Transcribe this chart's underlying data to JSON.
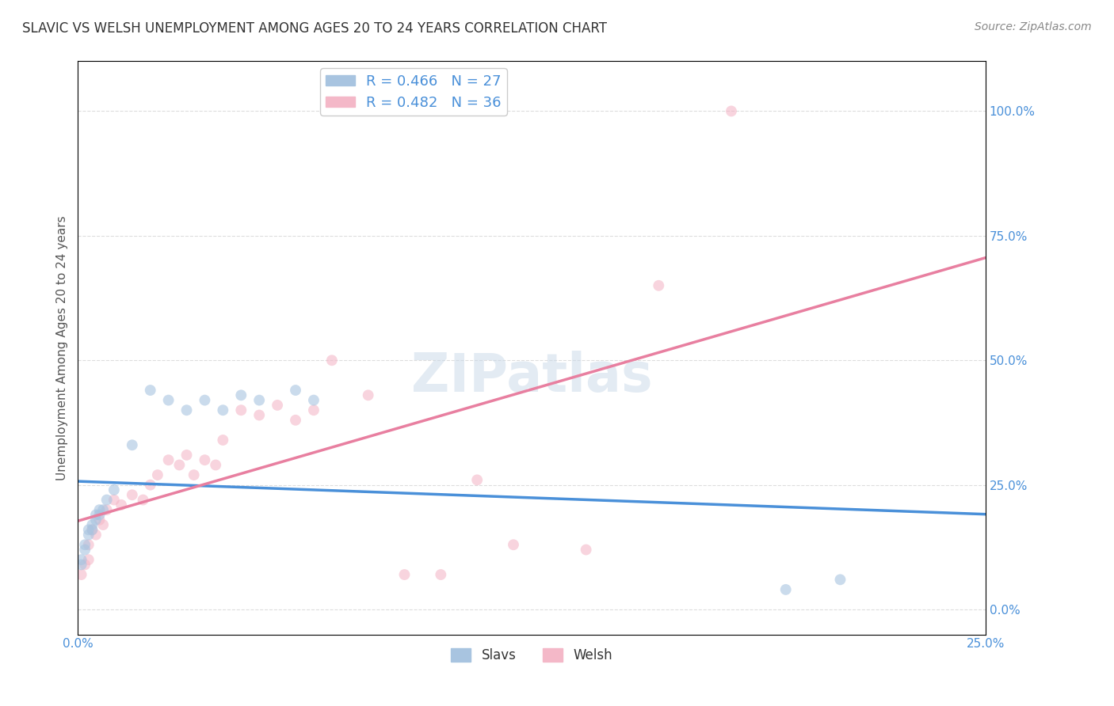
{
  "title": "SLAVIC VS WELSH UNEMPLOYMENT AMONG AGES 20 TO 24 YEARS CORRELATION CHART",
  "source": "Source: ZipAtlas.com",
  "xlabel": "",
  "ylabel": "Unemployment Among Ages 20 to 24 years",
  "xlim": [
    0.0,
    0.25
  ],
  "ylim": [
    -0.05,
    1.1
  ],
  "yticks": [
    0.0,
    0.25,
    0.5,
    0.75,
    1.0
  ],
  "ytick_labels": [
    "0.0%",
    "25.0%",
    "50.0%",
    "75.0%",
    "100.0%"
  ],
  "xticks": [
    0.0,
    0.05,
    0.1,
    0.15,
    0.2,
    0.25
  ],
  "xtick_labels": [
    "0.0%",
    "",
    "",
    "",
    "",
    "25.0%"
  ],
  "slavs_color": "#a8c4e0",
  "welsh_color": "#f4b8c8",
  "slavs_line_color": "#4a90d9",
  "welsh_line_color": "#e87fa0",
  "legend_text_color": "#4a90d9",
  "background_color": "#ffffff",
  "grid_color": "#dddddd",
  "slavs_R": 0.466,
  "slavs_N": 27,
  "welsh_R": 0.482,
  "welsh_N": 36,
  "slavs_x": [
    0.001,
    0.001,
    0.002,
    0.002,
    0.003,
    0.003,
    0.004,
    0.004,
    0.005,
    0.005,
    0.006,
    0.006,
    0.007,
    0.008,
    0.01,
    0.015,
    0.02,
    0.025,
    0.03,
    0.035,
    0.04,
    0.045,
    0.05,
    0.06,
    0.065,
    0.195,
    0.21
  ],
  "slavs_y": [
    0.1,
    0.09,
    0.13,
    0.12,
    0.16,
    0.15,
    0.17,
    0.16,
    0.19,
    0.18,
    0.2,
    0.19,
    0.2,
    0.22,
    0.24,
    0.33,
    0.44,
    0.42,
    0.4,
    0.42,
    0.4,
    0.43,
    0.42,
    0.44,
    0.42,
    0.04,
    0.06
  ],
  "welsh_x": [
    0.001,
    0.002,
    0.003,
    0.003,
    0.004,
    0.005,
    0.006,
    0.007,
    0.008,
    0.01,
    0.012,
    0.015,
    0.018,
    0.02,
    0.022,
    0.025,
    0.028,
    0.03,
    0.032,
    0.035,
    0.038,
    0.04,
    0.045,
    0.05,
    0.055,
    0.06,
    0.065,
    0.07,
    0.08,
    0.09,
    0.1,
    0.11,
    0.12,
    0.14,
    0.16,
    0.18
  ],
  "welsh_y": [
    0.07,
    0.09,
    0.1,
    0.13,
    0.16,
    0.15,
    0.18,
    0.17,
    0.2,
    0.22,
    0.21,
    0.23,
    0.22,
    0.25,
    0.27,
    0.3,
    0.29,
    0.31,
    0.27,
    0.3,
    0.29,
    0.34,
    0.4,
    0.39,
    0.41,
    0.38,
    0.4,
    0.5,
    0.43,
    0.07,
    0.07,
    0.26,
    0.13,
    0.12,
    0.65,
    1.0
  ],
  "watermark": "ZIPatlas",
  "watermark_color": "#c8d8e8",
  "marker_size": 100,
  "marker_alpha": 0.6,
  "line_width": 2.5
}
